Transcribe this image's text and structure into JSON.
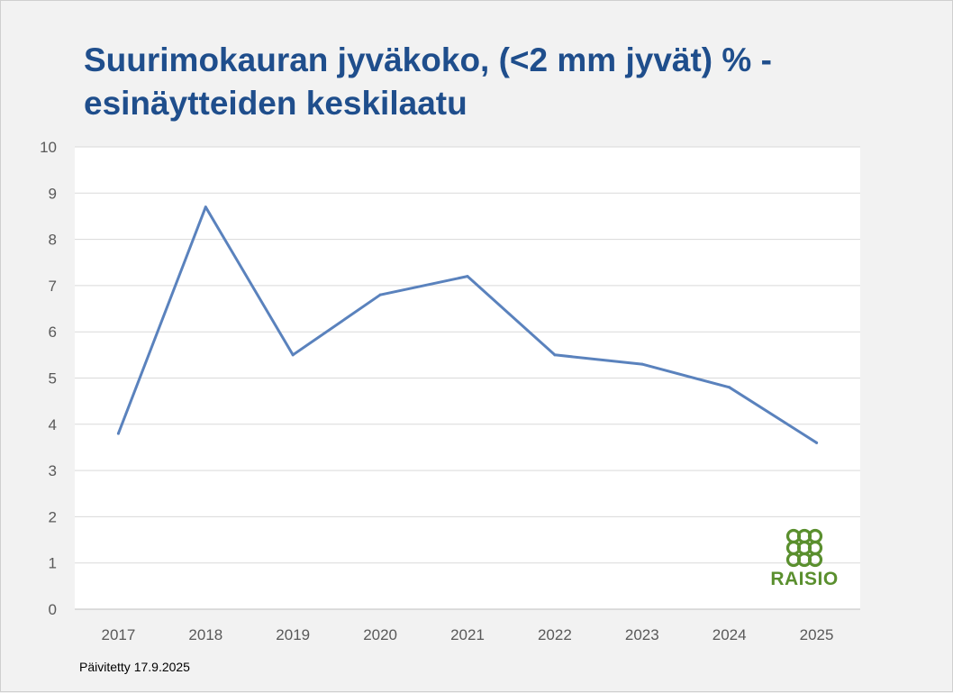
{
  "title": {
    "line1": "Suurimokauran jyväkoko, (<2 mm jyvät) % -",
    "line2": "esinäytteiden keskilaatu"
  },
  "updated": "Päivitetty 17.9.2025",
  "logo": {
    "text": "RAISIO",
    "color": "#5a8f2e"
  },
  "chart_data": {
    "type": "line",
    "title": "Suurimokauran jyväkoko, (<2 mm jyvät) % - esinäytteiden keskilaatu",
    "categories": [
      "2017",
      "2018",
      "2019",
      "2020",
      "2021",
      "2022",
      "2023",
      "2024",
      "2025"
    ],
    "series": [
      {
        "values": [
          3.8,
          8.7,
          5.5,
          6.8,
          7.2,
          5.5,
          5.3,
          4.8,
          3.6
        ],
        "color": "#5a82bd"
      }
    ],
    "ylim": [
      0,
      10
    ],
    "yticks": [
      0,
      1,
      2,
      3,
      4,
      5,
      6,
      7,
      8,
      9,
      10
    ],
    "grid": true,
    "xlabel": "",
    "ylabel": ""
  }
}
